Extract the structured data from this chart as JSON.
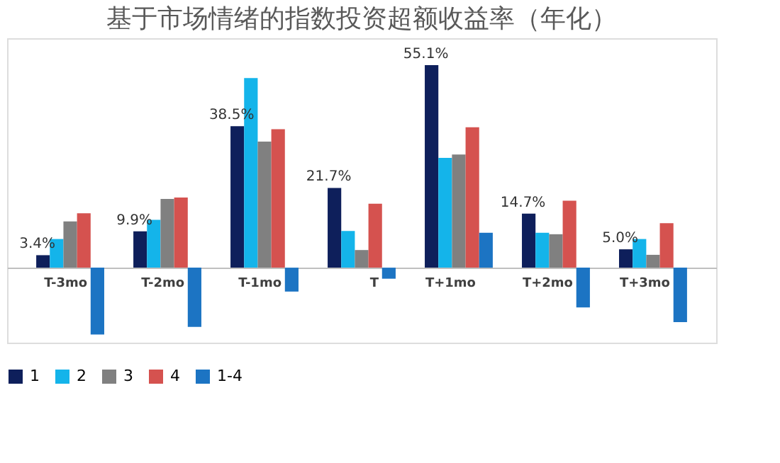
{
  "chart_data": {
    "type": "bar",
    "title": "基于市场情绪的指数投资超额收益率（年化）",
    "categories": [
      "T-3mo",
      "T-2mo",
      "T-1mo",
      "T",
      "T+1mo",
      "T+2mo",
      "T+3mo"
    ],
    "series": [
      {
        "name": "1",
        "color": "#0e1f5b",
        "values": [
          3.4,
          9.9,
          38.5,
          21.7,
          55.1,
          14.7,
          5.0
        ],
        "value_labels": [
          "3.4%",
          "9.9%",
          "38.5%",
          "21.7%",
          "55.1%",
          "14.7%",
          "5.0%"
        ]
      },
      {
        "name": "2",
        "color": "#14b4ea",
        "values": [
          7.8,
          13.0,
          51.6,
          10.0,
          29.9,
          9.5,
          7.8
        ]
      },
      {
        "name": "3",
        "color": "#808080",
        "values": [
          12.6,
          18.7,
          34.3,
          4.8,
          30.8,
          9.1,
          3.5
        ]
      },
      {
        "name": "4",
        "color": "#d5524f",
        "values": [
          14.8,
          19.1,
          37.7,
          17.4,
          38.2,
          18.2,
          12.1
        ]
      },
      {
        "name": "1-4",
        "color": "#1c74c3",
        "values": [
          -18.2,
          -16.1,
          -6.5,
          -3.0,
          9.5,
          -10.8,
          -14.8
        ]
      }
    ],
    "legend": "bottom",
    "grid": false
  }
}
